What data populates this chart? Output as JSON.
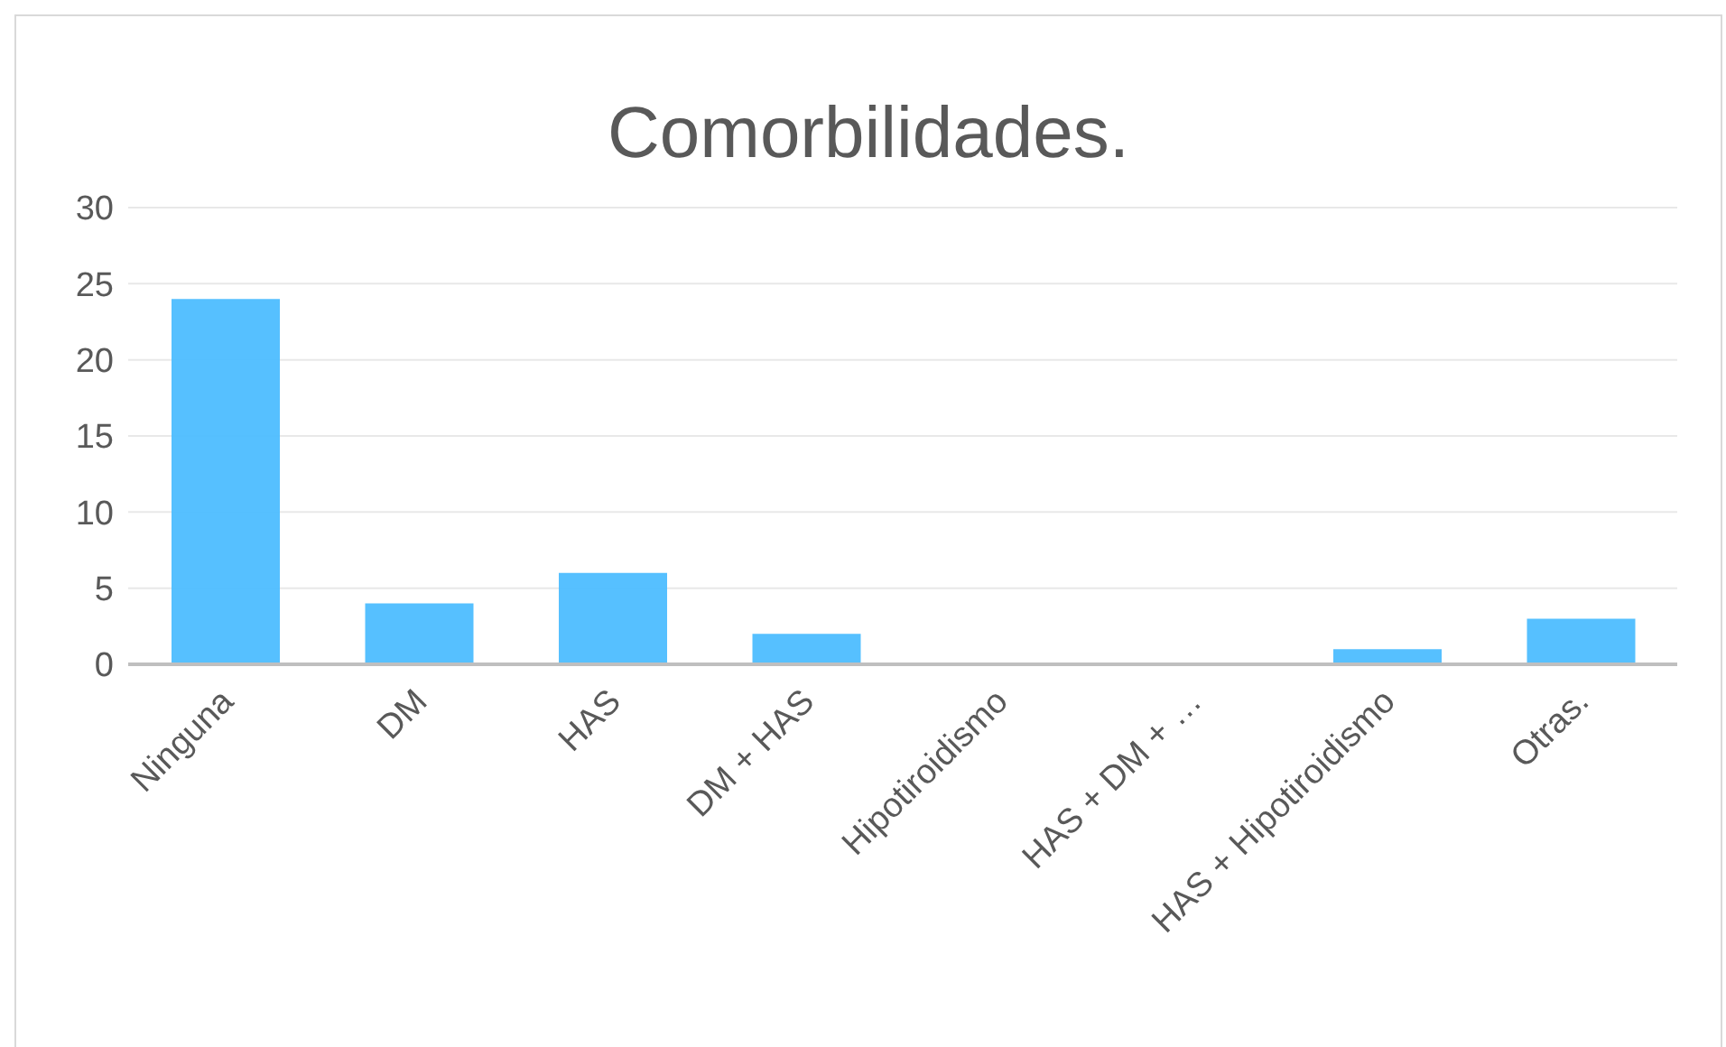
{
  "chart_data": {
    "type": "bar",
    "title": "Comorbilidades.",
    "categories": [
      "Ninguna",
      "DM",
      "HAS",
      "DM + HAS",
      "Hipotiroidismo",
      "HAS + DM + …",
      "HAS + Hipotiroidismo",
      "Otras."
    ],
    "values": [
      24,
      4,
      6,
      2,
      0,
      0,
      1,
      3
    ],
    "color": "#4dbdff",
    "ylim": [
      0,
      30
    ],
    "yticks": [
      0,
      5,
      10,
      15,
      20,
      25,
      30
    ],
    "grid": "y",
    "legend": false
  }
}
